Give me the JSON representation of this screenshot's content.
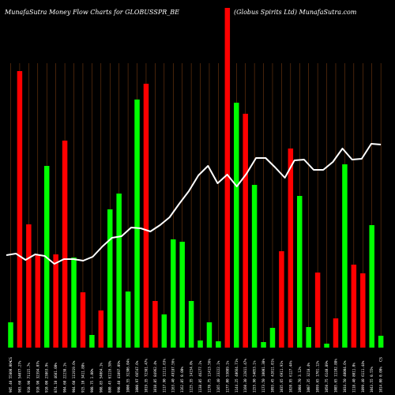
{
  "header": {
    "title_left": "MunafaSutra  Money Flow  Charts for GLOBUSSPR_BE",
    "title_right": "(Globus Spirits Ltd) MunafaSutra.com"
  },
  "colors": {
    "background": "#000000",
    "up": "#00ff00",
    "down": "#ff0000",
    "line": "#ffffff",
    "grid": "#8b4513"
  },
  "chart_data": {
    "type": "bar",
    "series": [
      {
        "kind": "bar",
        "values": [
          32,
          350,
          156,
          118,
          230,
          118,
          262,
          114,
          70,
          16,
          47,
          175,
          195,
          71,
          314,
          334,
          59,
          42,
          137,
          134,
          59,
          9,
          32,
          8,
          430,
          310,
          296,
          206,
          7,
          25,
          122,
          252,
          192,
          26,
          95,
          5,
          37,
          232,
          105,
          94,
          155,
          15
        ],
        "directions": [
          "up",
          "down",
          "down",
          "down",
          "up",
          "down",
          "down",
          "up",
          "down",
          "up",
          "down",
          "up",
          "up",
          "up",
          "up",
          "down",
          "down",
          "up",
          "up",
          "up",
          "up",
          "up",
          "up",
          "up",
          "down",
          "up",
          "down",
          "up",
          "up",
          "up",
          "down",
          "down",
          "up",
          "up",
          "down",
          "up",
          "down",
          "up",
          "down",
          "down",
          "up",
          "up"
        ]
      },
      {
        "kind": "line",
        "values": [
          117,
          119,
          111,
          118,
          116,
          106,
          112,
          112,
          110,
          115,
          128,
          139,
          141,
          152,
          151,
          147,
          155,
          165,
          182,
          198,
          218,
          230,
          208,
          219,
          204,
          220,
          240,
          240,
          228,
          215,
          237,
          238,
          225,
          225,
          235,
          252,
          238,
          239,
          258,
          257
        ]
      }
    ],
    "x_tick_labels_bottom": [
      "905.40 55800.00%",
      "903.60 54077.27%",
      "910.90 71115.7%",
      "910.90 32394.07%",
      "910.00 23863.9%",
      "874.10 4681.00%",
      "904.60 22238.1%",
      "904.60 111919.6%",
      "915.10 3411.88%",
      "900.75 1.00%",
      "908.85 54064.1%",
      "880.45 61116.58%",
      "990.40 41097.09%",
      "1000.55 31306.04%",
      "1000.97 66547.6%",
      "1019.35 72381.47%",
      "1010.85 84962.4%",
      "1117.90 11111.63%",
      "1163.40 49187.56%",
      "1162.85 0.00%",
      "1125.35 14154.0%",
      "1138.85 46277.1%",
      "1178.75 11413.56%",
      "1165.40 23222.1%",
      "1177.00 53089.1%",
      "1144.25 40664.71%",
      "1160.30 22811.47%",
      "1155.90 54053.1%",
      "1173.50 10001.38%",
      "1093.45 42811.01%",
      "1035.65 6911.91%",
      "1020.95 6127.44%",
      "1008.70 3.12%",
      "1007.35 3218.4%",
      "1099.65 1701.12%",
      "1050.75 6140.89%",
      "1085.65 11102.88%",
      "1034.50 40004.6%",
      "1118.40 8011.0%",
      "1099.40 6111.44%",
      "1043.55 0.55%",
      "1014.00 0.00%"
    ],
    "x_tick_labels_top": [
      "CS",
      "",
      "",
      "",
      "",
      "",
      "",
      "",
      "",
      "",
      "",
      "",
      "",
      "",
      "",
      "",
      "",
      "",
      "",
      "",
      "",
      "",
      "",
      "",
      "",
      "",
      "",
      "",
      "",
      "",
      "",
      "",
      "",
      "",
      "",
      "",
      "",
      "",
      "",
      "",
      "",
      "CS"
    ],
    "bar_ylim": [
      0,
      430
    ],
    "line_ylim": [
      0,
      430
    ],
    "grid": true,
    "legend": "none"
  }
}
